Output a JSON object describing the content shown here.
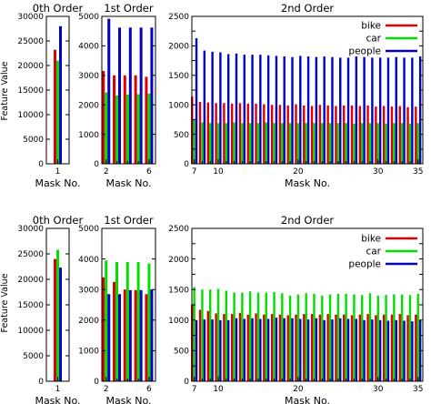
{
  "colors": {
    "bike": "#e00000",
    "car": "#00e000",
    "people": "#0000c8",
    "axis": "#000000"
  },
  "legend_order": [
    "bike",
    "car",
    "people"
  ],
  "chart_data": [
    {
      "type": "bar",
      "title": "0th Order",
      "xlabel": "Mask No.",
      "ylabel": "Feature Value",
      "ylim": [
        0,
        30000
      ],
      "yticks": [
        0,
        5000,
        10000,
        15000,
        20000,
        25000,
        30000
      ],
      "xticks": [
        1
      ],
      "x": [
        1
      ],
      "series": [
        {
          "key": "bike",
          "values": [
            23200
          ]
        },
        {
          "key": "car",
          "values": [
            21000
          ]
        },
        {
          "key": "people",
          "values": [
            28000
          ]
        }
      ]
    },
    {
      "type": "bar",
      "title": "1st Order",
      "xlabel": "Mask No.",
      "ylabel": "",
      "ylim": [
        0,
        5000
      ],
      "yticks": [
        0,
        1000,
        2000,
        3000,
        4000,
        5000
      ],
      "xticks": [
        2,
        6
      ],
      "x": [
        2,
        3,
        4,
        5,
        6
      ],
      "series": [
        {
          "key": "bike",
          "values": [
            3150,
            3000,
            3000,
            3000,
            2950
          ]
        },
        {
          "key": "car",
          "values": [
            2420,
            2320,
            2350,
            2360,
            2380
          ]
        },
        {
          "key": "people",
          "values": [
            4920,
            4620,
            4620,
            4620,
            4620
          ]
        }
      ]
    },
    {
      "type": "bar",
      "title": "2nd Order",
      "xlabel": "Mask No.",
      "ylabel": "",
      "ylim": [
        0,
        2500
      ],
      "yticks": [
        0,
        250,
        500,
        750,
        1000,
        1250,
        1500,
        1750,
        2000,
        2250,
        2500
      ],
      "xticks": [
        7,
        10,
        20,
        30,
        35
      ],
      "x": [
        7,
        8,
        9,
        10,
        11,
        12,
        13,
        14,
        15,
        16,
        17,
        18,
        19,
        20,
        21,
        22,
        23,
        24,
        25,
        26,
        27,
        28,
        29,
        30,
        31,
        32,
        33,
        34,
        35
      ],
      "legend": [
        "bike",
        "car",
        "people"
      ],
      "series": [
        {
          "key": "bike",
          "values": [
            1140,
            1050,
            1040,
            1030,
            1030,
            1020,
            1030,
            1020,
            1020,
            1010,
            1000,
            1000,
            990,
            1010,
            990,
            980,
            1000,
            990,
            980,
            990,
            990,
            980,
            990,
            970,
            980,
            970,
            980,
            960,
            970
          ]
        },
        {
          "key": "car",
          "values": [
            740,
            700,
            690,
            690,
            690,
            700,
            690,
            690,
            690,
            700,
            690,
            690,
            690,
            690,
            690,
            690,
            690,
            690,
            690,
            690,
            680,
            690,
            690,
            690,
            680,
            690,
            690,
            680,
            690
          ]
        },
        {
          "key": "people",
          "values": [
            2130,
            1920,
            1900,
            1890,
            1860,
            1870,
            1850,
            1850,
            1850,
            1840,
            1830,
            1820,
            1810,
            1830,
            1820,
            1810,
            1820,
            1810,
            1800,
            1800,
            1820,
            1810,
            1800,
            1800,
            1800,
            1810,
            1800,
            1800,
            1820
          ]
        }
      ]
    },
    {
      "type": "bar",
      "title": "0th Order",
      "xlabel": "Mask No.",
      "ylabel": "Feature Value",
      "ylim": [
        0,
        30000
      ],
      "yticks": [
        0,
        5000,
        10000,
        15000,
        20000,
        25000,
        30000
      ],
      "xticks": [
        1
      ],
      "x": [
        1
      ],
      "series": [
        {
          "key": "bike",
          "values": [
            24000
          ]
        },
        {
          "key": "car",
          "values": [
            25800
          ]
        },
        {
          "key": "people",
          "values": [
            22300
          ]
        }
      ]
    },
    {
      "type": "bar",
      "title": "1st Order",
      "xlabel": "Mask No.",
      "ylabel": "",
      "ylim": [
        0,
        5000
      ],
      "yticks": [
        0,
        1000,
        2000,
        3000,
        4000,
        5000
      ],
      "xticks": [
        2,
        6
      ],
      "x": [
        2,
        3,
        4,
        5,
        6
      ],
      "series": [
        {
          "key": "bike",
          "values": [
            3400,
            3250,
            3000,
            2980,
            2850
          ]
        },
        {
          "key": "car",
          "values": [
            3950,
            3900,
            3900,
            3900,
            3850
          ]
        },
        {
          "key": "people",
          "values": [
            2850,
            2850,
            2980,
            2980,
            3000
          ]
        }
      ]
    },
    {
      "type": "bar",
      "title": "2nd Order",
      "xlabel": "Mask No.",
      "ylabel": "",
      "ylim": [
        0,
        2500
      ],
      "yticks": [
        0,
        250,
        500,
        750,
        1000,
        1250,
        1500,
        1750,
        2000,
        2250,
        2500
      ],
      "xticks": [
        7,
        10,
        20,
        30,
        35
      ],
      "x": [
        7,
        8,
        9,
        10,
        11,
        12,
        13,
        14,
        15,
        16,
        17,
        18,
        19,
        20,
        21,
        22,
        23,
        24,
        25,
        26,
        27,
        28,
        29,
        30,
        31,
        32,
        33,
        34,
        35
      ],
      "legend": [
        "bike",
        "car",
        "people"
      ],
      "series": [
        {
          "key": "bike",
          "values": [
            1250,
            1170,
            1150,
            1110,
            1100,
            1100,
            1120,
            1090,
            1110,
            1090,
            1100,
            1090,
            1080,
            1090,
            1100,
            1100,
            1090,
            1100,
            1090,
            1090,
            1080,
            1090,
            1100,
            1080,
            1090,
            1090,
            1100,
            1080,
            1090
          ]
        },
        {
          "key": "car",
          "values": [
            1540,
            1500,
            1500,
            1510,
            1480,
            1450,
            1450,
            1470,
            1450,
            1450,
            1460,
            1440,
            1400,
            1420,
            1440,
            1430,
            1400,
            1420,
            1430,
            1430,
            1420,
            1410,
            1440,
            1400,
            1410,
            1420,
            1420,
            1410,
            1430
          ]
        },
        {
          "key": "people",
          "values": [
            1000,
            1010,
            1010,
            1000,
            1000,
            1030,
            1020,
            1030,
            1020,
            1020,
            1040,
            1030,
            1030,
            1020,
            1010,
            1030,
            1000,
            1010,
            1030,
            1020,
            1020,
            1000,
            1010,
            1000,
            990,
            1000,
            990,
            980,
            1000
          ]
        }
      ]
    }
  ]
}
